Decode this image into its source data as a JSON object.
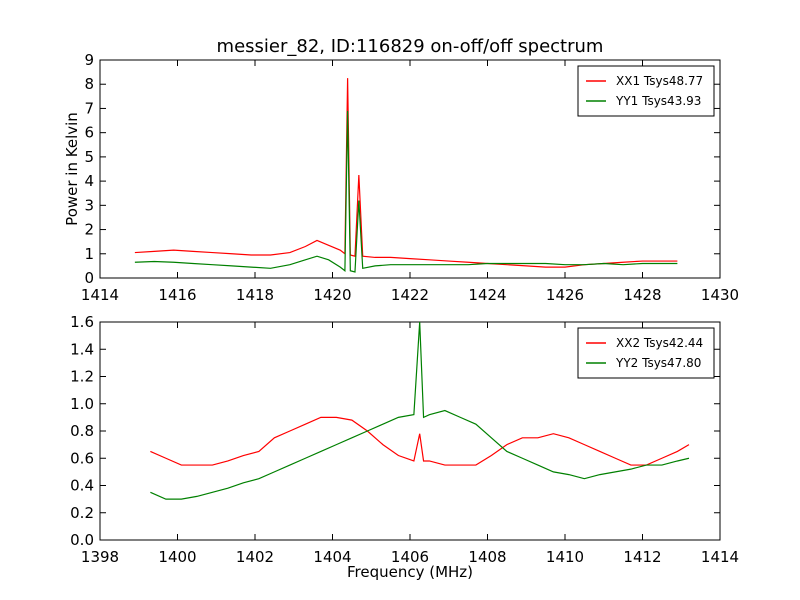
{
  "chart_title": "messier_82, ID:116829 on-off/off spectrum",
  "chart_data": [
    {
      "type": "line",
      "title": "messier_82, ID:116829 on-off/off spectrum",
      "xlabel": "",
      "ylabel": "Power in Kelvin",
      "xlim": [
        1414,
        1430
      ],
      "ylim": [
        0,
        9
      ],
      "xticks": [
        "1414",
        "1416",
        "1418",
        "1420",
        "1422",
        "1424",
        "1426",
        "1428",
        "1430"
      ],
      "yticks": [
        "0",
        "1",
        "2",
        "3",
        "4",
        "5",
        "6",
        "7",
        "8",
        "9"
      ],
      "grid": false,
      "legend_position": "top-right",
      "series": [
        {
          "name": "XX1 Tsys48.77",
          "color": "#ff0000",
          "x": [
            1414.9,
            1415.4,
            1415.9,
            1416.4,
            1416.9,
            1417.4,
            1417.9,
            1418.4,
            1418.9,
            1419.3,
            1419.6,
            1419.9,
            1420.2,
            1420.32,
            1420.39,
            1420.46,
            1420.58,
            1420.68,
            1420.78,
            1421.1,
            1421.5,
            1422,
            1422.5,
            1423,
            1423.5,
            1424,
            1424.5,
            1425,
            1425.5,
            1426,
            1426.5,
            1427,
            1427.5,
            1428,
            1428.5,
            1428.9
          ],
          "values": [
            1.05,
            1.1,
            1.15,
            1.1,
            1.05,
            1.0,
            0.95,
            0.95,
            1.05,
            1.3,
            1.55,
            1.35,
            1.15,
            1.0,
            8.25,
            0.95,
            0.9,
            4.25,
            0.9,
            0.85,
            0.85,
            0.8,
            0.75,
            0.7,
            0.65,
            0.6,
            0.55,
            0.5,
            0.45,
            0.45,
            0.55,
            0.6,
            0.65,
            0.7,
            0.7,
            0.7
          ]
        },
        {
          "name": "YY1 Tsys43.93",
          "color": "#008000",
          "x": [
            1414.9,
            1415.4,
            1415.9,
            1416.4,
            1416.9,
            1417.4,
            1417.9,
            1418.4,
            1418.9,
            1419.3,
            1419.6,
            1419.9,
            1420.2,
            1420.32,
            1420.39,
            1420.46,
            1420.58,
            1420.68,
            1420.78,
            1421.1,
            1421.5,
            1422,
            1422.5,
            1423,
            1423.5,
            1424,
            1424.5,
            1425,
            1425.5,
            1426,
            1426.5,
            1427,
            1427.5,
            1428,
            1428.5,
            1428.9
          ],
          "values": [
            0.65,
            0.68,
            0.65,
            0.6,
            0.55,
            0.5,
            0.45,
            0.4,
            0.55,
            0.75,
            0.9,
            0.75,
            0.45,
            0.3,
            6.9,
            0.3,
            0.25,
            3.2,
            0.4,
            0.5,
            0.55,
            0.55,
            0.55,
            0.55,
            0.55,
            0.6,
            0.6,
            0.6,
            0.6,
            0.55,
            0.55,
            0.6,
            0.55,
            0.6,
            0.6,
            0.6
          ]
        }
      ]
    },
    {
      "type": "line",
      "title": "",
      "xlabel": "Frequency (MHz)",
      "ylabel": "",
      "xlim": [
        1398,
        1414
      ],
      "ylim": [
        0.0,
        1.6
      ],
      "xticks": [
        "1398",
        "1400",
        "1402",
        "1404",
        "1406",
        "1408",
        "1410",
        "1412",
        "1414"
      ],
      "yticks": [
        "0.0",
        "0.2",
        "0.4",
        "0.6",
        "0.8",
        "1.0",
        "1.2",
        "1.4",
        "1.6"
      ],
      "grid": false,
      "legend_position": "top-right",
      "series": [
        {
          "name": "XX2 Tsys42.44",
          "color": "#ff0000",
          "x": [
            1399.3,
            1399.7,
            1400.1,
            1400.5,
            1400.9,
            1401.3,
            1401.7,
            1402.1,
            1402.5,
            1402.9,
            1403.3,
            1403.7,
            1404.1,
            1404.5,
            1404.9,
            1405.3,
            1405.7,
            1406.1,
            1406.25,
            1406.35,
            1406.5,
            1406.9,
            1407.3,
            1407.7,
            1408.1,
            1408.5,
            1408.9,
            1409.3,
            1409.7,
            1410.1,
            1410.5,
            1410.9,
            1411.3,
            1411.7,
            1412.1,
            1412.5,
            1412.9,
            1413.2
          ],
          "values": [
            0.65,
            0.6,
            0.55,
            0.55,
            0.55,
            0.58,
            0.62,
            0.65,
            0.75,
            0.8,
            0.85,
            0.9,
            0.9,
            0.88,
            0.8,
            0.7,
            0.62,
            0.58,
            0.78,
            0.58,
            0.58,
            0.55,
            0.55,
            0.55,
            0.62,
            0.7,
            0.75,
            0.75,
            0.78,
            0.75,
            0.7,
            0.65,
            0.6,
            0.55,
            0.55,
            0.6,
            0.65,
            0.7
          ]
        },
        {
          "name": "YY2 Tsys47.80",
          "color": "#008000",
          "x": [
            1399.3,
            1399.7,
            1400.1,
            1400.5,
            1400.9,
            1401.3,
            1401.7,
            1402.1,
            1402.5,
            1402.9,
            1403.3,
            1403.7,
            1404.1,
            1404.5,
            1404.9,
            1405.3,
            1405.7,
            1406.1,
            1406.25,
            1406.35,
            1406.5,
            1406.9,
            1407.3,
            1407.7,
            1408.1,
            1408.5,
            1408.9,
            1409.3,
            1409.7,
            1410.1,
            1410.5,
            1410.9,
            1411.3,
            1411.7,
            1412.1,
            1412.5,
            1412.9,
            1413.2
          ],
          "values": [
            0.35,
            0.3,
            0.3,
            0.32,
            0.35,
            0.38,
            0.42,
            0.45,
            0.5,
            0.55,
            0.6,
            0.65,
            0.7,
            0.75,
            0.8,
            0.85,
            0.9,
            0.92,
            1.6,
            0.9,
            0.92,
            0.95,
            0.9,
            0.85,
            0.75,
            0.65,
            0.6,
            0.55,
            0.5,
            0.48,
            0.45,
            0.48,
            0.5,
            0.52,
            0.55,
            0.55,
            0.58,
            0.6
          ]
        }
      ]
    }
  ]
}
